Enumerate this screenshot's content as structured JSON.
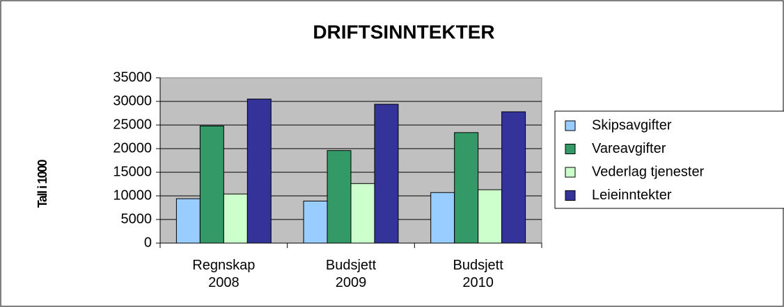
{
  "chart_data": {
    "type": "bar",
    "title": "DRIFTSINNTEKTER",
    "y_label": "Tall i 1000",
    "categories": [
      "Regnskap 2008",
      "Budsjett 2009",
      "Budsjett 2010"
    ],
    "series": [
      {
        "name": "Skipsavgifter",
        "color": "#99ccff",
        "values": [
          9400,
          8900,
          10700
        ]
      },
      {
        "name": "Vareavgifter",
        "color": "#339966",
        "values": [
          24800,
          19600,
          23400
        ]
      },
      {
        "name": "Vederlag tjenester",
        "color": "#ccffcc",
        "values": [
          10400,
          12600,
          11300
        ]
      },
      {
        "name": "Leieinntekter",
        "color": "#333399",
        "values": [
          30500,
          29400,
          27800
        ]
      }
    ],
    "ylim": [
      0,
      35000
    ],
    "yticks": [
      0,
      5000,
      10000,
      15000,
      20000,
      25000,
      30000,
      35000
    ],
    "grid": true,
    "legend": "right"
  }
}
